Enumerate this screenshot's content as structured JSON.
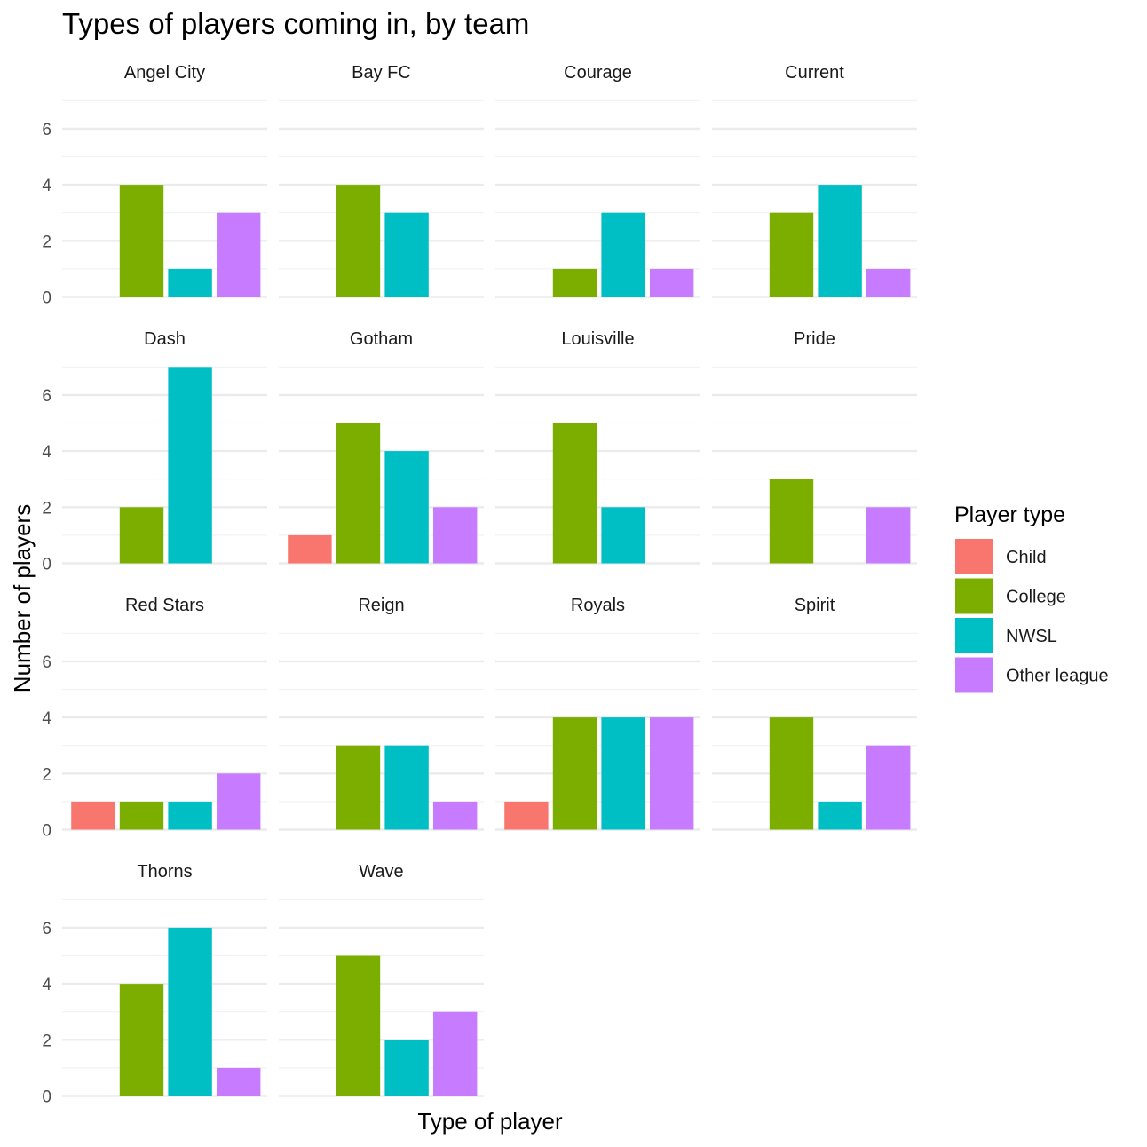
{
  "chart_data": {
    "type": "bar",
    "title": "Types of players coming in, by team",
    "xlabel": "Type of player",
    "ylabel": "Number of players",
    "ylim": [
      0,
      7
    ],
    "yticks": [
      0,
      2,
      4,
      6
    ],
    "categories": [
      "Child",
      "College",
      "NWSL",
      "Other league"
    ],
    "legend": {
      "title": "Player type",
      "position": "right",
      "items": [
        {
          "label": "Child",
          "color": "#F8766D"
        },
        {
          "label": "College",
          "color": "#7CAE00"
        },
        {
          "label": "NWSL",
          "color": "#00BFC4"
        },
        {
          "label": "Other league",
          "color": "#C77CFF"
        }
      ]
    },
    "panels": [
      {
        "team": "Angel City",
        "values": {
          "College": 4,
          "NWSL": 1,
          "Other league": 3
        }
      },
      {
        "team": "Bay FC",
        "values": {
          "College": 4,
          "NWSL": 3
        }
      },
      {
        "team": "Courage",
        "values": {
          "College": 1,
          "NWSL": 3,
          "Other league": 1
        }
      },
      {
        "team": "Current",
        "values": {
          "College": 3,
          "NWSL": 4,
          "Other league": 1
        }
      },
      {
        "team": "Dash",
        "values": {
          "College": 2,
          "NWSL": 7
        }
      },
      {
        "team": "Gotham",
        "values": {
          "Child": 1,
          "College": 5,
          "NWSL": 4,
          "Other league": 2
        }
      },
      {
        "team": "Louisville",
        "values": {
          "College": 5,
          "NWSL": 2
        }
      },
      {
        "team": "Pride",
        "values": {
          "College": 3,
          "Other league": 2
        }
      },
      {
        "team": "Red Stars",
        "values": {
          "Child": 1,
          "College": 1,
          "NWSL": 1,
          "Other league": 2
        }
      },
      {
        "team": "Reign",
        "values": {
          "College": 3,
          "NWSL": 3,
          "Other league": 1
        }
      },
      {
        "team": "Royals",
        "values": {
          "Child": 1,
          "College": 4,
          "NWSL": 4,
          "Other league": 4
        }
      },
      {
        "team": "Spirit",
        "values": {
          "College": 4,
          "NWSL": 1,
          "Other league": 3
        }
      },
      {
        "team": "Thorns",
        "values": {
          "College": 4,
          "NWSL": 6,
          "Other league": 1
        }
      },
      {
        "team": "Wave",
        "values": {
          "College": 5,
          "NWSL": 2,
          "Other league": 3
        }
      }
    ]
  }
}
